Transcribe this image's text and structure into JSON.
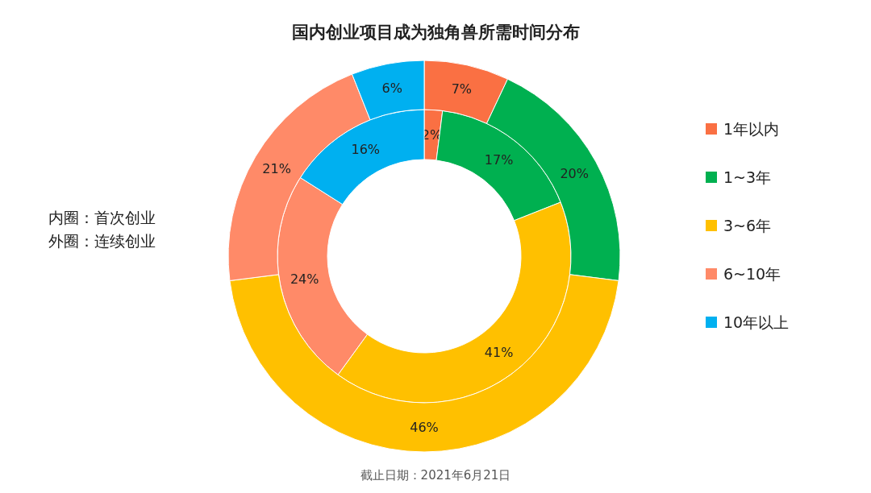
{
  "chart_data": {
    "type": "donut",
    "title": "国内创业项目成为独角兽所需时间分布",
    "categories": [
      "1年以内",
      "1~3年",
      "3~6年",
      "6~10年",
      "10年以上"
    ],
    "colors": [
      "#fa7043",
      "#00b050",
      "#ffc000",
      "#ff8a68",
      "#00b0f0"
    ],
    "series": [
      {
        "values": [
          2,
          17,
          41,
          24,
          16
        ],
        "value_labels": [
          "2%",
          "17%",
          "41%",
          "24%",
          "16%"
        ]
      },
      {
        "values": [
          7,
          20,
          46,
          21,
          6
        ],
        "value_labels": [
          "7%",
          "20%",
          "46%",
          "21%",
          "6%"
        ]
      }
    ],
    "legend": "right",
    "annotations": [
      "内圈：首次创业",
      "外圈：连续创业",
      "截止日期：2021年6月21日"
    ]
  }
}
